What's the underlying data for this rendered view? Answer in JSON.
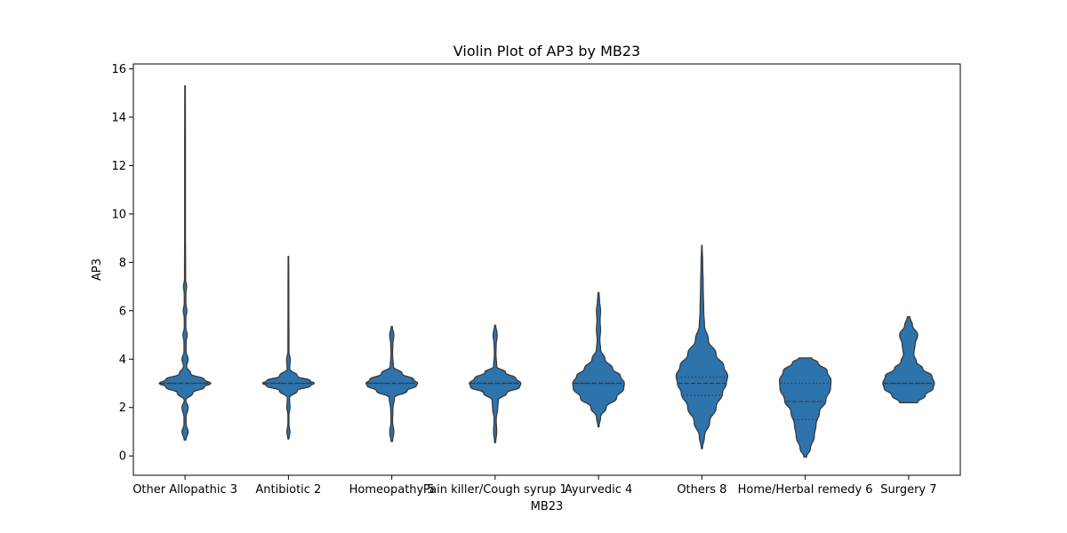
{
  "chart_data": {
    "type": "violin",
    "title": "Violin Plot of AP3 by MB23",
    "xlabel": "MB23",
    "ylabel": "AP3",
    "ylim": [
      -0.8,
      16.2
    ],
    "yticks": [
      0,
      2,
      4,
      6,
      8,
      10,
      12,
      14,
      16
    ],
    "grid": false,
    "colors": {
      "violin_fill": "#2d73ac",
      "violin_edge": "#3a3a3a",
      "quartile": "#3a3a3a"
    },
    "categories": [
      "Other Allopathic 3",
      "Antibiotic 2",
      "Homeopathy 5",
      "Pain killer/Cough syrup 1",
      "Ayurvedic 4",
      "Others 8",
      "Home/Herbal remedy 6",
      "Surgery 7"
    ],
    "violins": [
      {
        "category": "Other Allopathic 3",
        "min": 0.65,
        "max": 15.3,
        "q1": 3.0,
        "median": 3.0,
        "q3": 3.0,
        "profile": [
          [
            0.65,
            0.03
          ],
          [
            1.0,
            0.12
          ],
          [
            1.3,
            0.04
          ],
          [
            1.6,
            0.04
          ],
          [
            2.0,
            0.12
          ],
          [
            2.3,
            0.03
          ],
          [
            2.6,
            0.3
          ],
          [
            2.85,
            0.75
          ],
          [
            3.0,
            1.0
          ],
          [
            3.15,
            0.75
          ],
          [
            3.4,
            0.22
          ],
          [
            3.7,
            0.06
          ],
          [
            4.0,
            0.12
          ],
          [
            4.3,
            0.04
          ],
          [
            4.7,
            0.04
          ],
          [
            5.0,
            0.08
          ],
          [
            5.3,
            0.03
          ],
          [
            5.7,
            0.03
          ],
          [
            6.0,
            0.07
          ],
          [
            6.3,
            0.03
          ],
          [
            6.7,
            0.03
          ],
          [
            7.0,
            0.06
          ],
          [
            7.3,
            0.02
          ],
          [
            8.0,
            0.02
          ],
          [
            9.0,
            0.015
          ],
          [
            11.0,
            0.015
          ],
          [
            13.0,
            0.015
          ],
          [
            15.3,
            0.01
          ]
        ]
      },
      {
        "category": "Antibiotic 2",
        "min": 0.7,
        "max": 8.25,
        "q1": 3.0,
        "median": 3.0,
        "q3": 3.0,
        "profile": [
          [
            0.7,
            0.02
          ],
          [
            1.0,
            0.06
          ],
          [
            1.3,
            0.02
          ],
          [
            1.7,
            0.02
          ],
          [
            2.0,
            0.06
          ],
          [
            2.4,
            0.04
          ],
          [
            2.7,
            0.35
          ],
          [
            2.9,
            0.85
          ],
          [
            3.0,
            1.0
          ],
          [
            3.1,
            0.85
          ],
          [
            3.3,
            0.35
          ],
          [
            3.6,
            0.05
          ],
          [
            4.0,
            0.07
          ],
          [
            4.3,
            0.02
          ],
          [
            5.0,
            0.02
          ],
          [
            6.0,
            0.015
          ],
          [
            7.0,
            0.015
          ],
          [
            8.25,
            0.01
          ]
        ]
      },
      {
        "category": "Homeopathy 5",
        "min": 0.6,
        "max": 5.35,
        "q1": 3.0,
        "median": 3.0,
        "q3": 3.0,
        "profile": [
          [
            0.6,
            0.03
          ],
          [
            1.0,
            0.08
          ],
          [
            1.4,
            0.03
          ],
          [
            1.9,
            0.04
          ],
          [
            2.4,
            0.1
          ],
          [
            2.7,
            0.6
          ],
          [
            2.9,
            0.95
          ],
          [
            3.0,
            1.0
          ],
          [
            3.15,
            0.85
          ],
          [
            3.4,
            0.4
          ],
          [
            3.7,
            0.06
          ],
          [
            4.2,
            0.03
          ],
          [
            4.6,
            0.04
          ],
          [
            5.0,
            0.08
          ],
          [
            5.35,
            0.02
          ]
        ]
      },
      {
        "category": "Pain killer/Cough syrup 1",
        "min": 0.55,
        "max": 5.4,
        "q1": 3.0,
        "median": 3.0,
        "q3": 3.0,
        "profile": [
          [
            0.55,
            0.02
          ],
          [
            1.0,
            0.06
          ],
          [
            1.5,
            0.04
          ],
          [
            2.0,
            0.1
          ],
          [
            2.3,
            0.12
          ],
          [
            2.6,
            0.45
          ],
          [
            2.85,
            0.95
          ],
          [
            3.0,
            1.0
          ],
          [
            3.2,
            0.8
          ],
          [
            3.45,
            0.4
          ],
          [
            3.7,
            0.06
          ],
          [
            4.2,
            0.03
          ],
          [
            4.6,
            0.04
          ],
          [
            5.0,
            0.08
          ],
          [
            5.4,
            0.02
          ]
        ]
      },
      {
        "category": "Ayurvedic 4",
        "min": 1.2,
        "max": 6.75,
        "q1": 3.0,
        "median": 3.0,
        "q3": 3.0,
        "profile": [
          [
            1.2,
            0.02
          ],
          [
            1.6,
            0.08
          ],
          [
            2.0,
            0.3
          ],
          [
            2.4,
            0.7
          ],
          [
            2.8,
            0.98
          ],
          [
            3.0,
            1.0
          ],
          [
            3.3,
            0.85
          ],
          [
            3.6,
            0.55
          ],
          [
            4.0,
            0.25
          ],
          [
            4.4,
            0.08
          ],
          [
            4.8,
            0.05
          ],
          [
            5.2,
            0.08
          ],
          [
            5.6,
            0.06
          ],
          [
            6.0,
            0.08
          ],
          [
            6.4,
            0.04
          ],
          [
            6.75,
            0.02
          ]
        ]
      },
      {
        "category": "Others 8",
        "min": 0.3,
        "max": 8.7,
        "q1": 2.5,
        "median": 3.0,
        "q3": 3.25,
        "profile": [
          [
            0.3,
            0.02
          ],
          [
            0.8,
            0.1
          ],
          [
            1.4,
            0.3
          ],
          [
            2.0,
            0.55
          ],
          [
            2.6,
            0.8
          ],
          [
            3.0,
            0.95
          ],
          [
            3.3,
            1.0
          ],
          [
            3.7,
            0.85
          ],
          [
            4.2,
            0.55
          ],
          [
            4.8,
            0.25
          ],
          [
            5.4,
            0.1
          ],
          [
            6.0,
            0.07
          ],
          [
            7.0,
            0.05
          ],
          [
            8.0,
            0.03
          ],
          [
            8.7,
            0.01
          ]
        ]
      },
      {
        "category": "Home/Herbal remedy 6",
        "min": -0.05,
        "max": 4.05,
        "q1": 1.5,
        "median": 2.25,
        "q3": 3.0,
        "profile": [
          [
            -0.05,
            0.05
          ],
          [
            0.3,
            0.2
          ],
          [
            0.8,
            0.35
          ],
          [
            1.3,
            0.42
          ],
          [
            1.8,
            0.55
          ],
          [
            2.3,
            0.8
          ],
          [
            2.8,
            0.98
          ],
          [
            3.1,
            1.0
          ],
          [
            3.5,
            0.85
          ],
          [
            3.85,
            0.5
          ],
          [
            4.05,
            0.25
          ]
        ]
      },
      {
        "category": "Surgery 7",
        "min": 2.2,
        "max": 5.75,
        "q1": 3.0,
        "median": 3.0,
        "q3": 3.0,
        "profile": [
          [
            2.2,
            0.35
          ],
          [
            2.5,
            0.65
          ],
          [
            2.8,
            0.95
          ],
          [
            3.0,
            1.0
          ],
          [
            3.3,
            0.9
          ],
          [
            3.6,
            0.55
          ],
          [
            3.9,
            0.3
          ],
          [
            4.2,
            0.2
          ],
          [
            4.6,
            0.25
          ],
          [
            5.0,
            0.35
          ],
          [
            5.4,
            0.15
          ],
          [
            5.75,
            0.05
          ]
        ]
      }
    ]
  }
}
